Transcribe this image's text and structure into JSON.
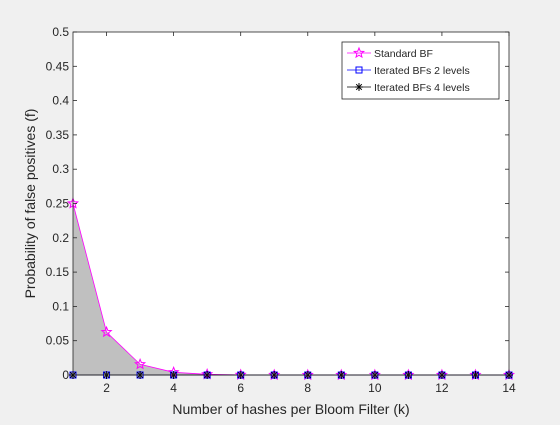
{
  "chart_data": {
    "type": "line",
    "xlabel": "Number of hashes per Bloom Filter (k)",
    "ylabel": "Probability of false positives (f)",
    "xlim": [
      1,
      14
    ],
    "ylim": [
      0,
      0.5
    ],
    "x_ticks": [
      2,
      4,
      6,
      8,
      10,
      12,
      14
    ],
    "x_tick_labels": [
      "2",
      "4",
      "6",
      "8",
      "10",
      "12",
      "14"
    ],
    "y_ticks": [
      0,
      0.05,
      0.1,
      0.15,
      0.2,
      0.25,
      0.3,
      0.35,
      0.4,
      0.45,
      0.5
    ],
    "y_tick_labels": [
      "0",
      "0.05",
      "0.1",
      "0.15",
      "0.2",
      "0.25",
      "0.3",
      "0.35",
      "0.4",
      "0.45",
      "0.5"
    ],
    "grid": false,
    "legend_position": "top-right",
    "shaded_area": {
      "under_series": "Standard BF",
      "color": "#c0c0c0"
    },
    "x": [
      1,
      2,
      3,
      4,
      5,
      6,
      7,
      8,
      9,
      10,
      11,
      12,
      13,
      14
    ],
    "series": [
      {
        "name": "Standard BF",
        "color": "#ff00ff",
        "marker": "star",
        "values": [
          0.25,
          0.0625,
          0.0156,
          0.0039,
          0.001,
          0.0002,
          0.0001,
          0,
          0,
          0,
          0,
          0,
          0,
          0
        ]
      },
      {
        "name": "Iterated BFs 2 levels",
        "color": "#0000ff",
        "marker": "square",
        "values": [
          0,
          0,
          0,
          0,
          0,
          0,
          0,
          0,
          0,
          0,
          0,
          0,
          0,
          0
        ]
      },
      {
        "name": "Iterated BFs 4 levels",
        "color": "#000000",
        "marker": "asterisk",
        "values": [
          0,
          0,
          0,
          0,
          0,
          0,
          0,
          0,
          0,
          0,
          0,
          0,
          0,
          0
        ]
      }
    ]
  }
}
